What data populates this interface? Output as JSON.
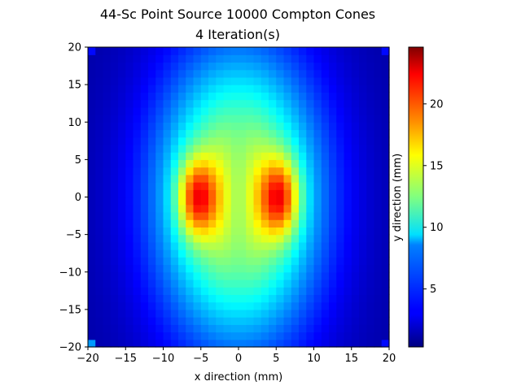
{
  "chart_data": {
    "type": "heatmap",
    "title": "44-Sc Point Source 10000 Compton Cones",
    "subtitle": "4 Iteration(s)",
    "xlabel": "x direction (mm)",
    "ylabel": "y direction (mm)",
    "xlim": [
      -20,
      20
    ],
    "ylim": [
      -20,
      20
    ],
    "x_ticks": [
      -20,
      -15,
      -10,
      -5,
      0,
      5,
      10,
      15,
      20
    ],
    "y_ticks": [
      -20,
      -15,
      -10,
      -5,
      0,
      5,
      10,
      15,
      20
    ],
    "grid": {
      "nx": 40,
      "ny": 40
    },
    "colormap": "jet",
    "colorbar": {
      "min": 0.3,
      "max": 24.6,
      "ticks": [
        5,
        10,
        15,
        20
      ]
    },
    "distribution": {
      "background": 1.2,
      "broad_component": {
        "x_center": 0,
        "y_center": 0,
        "x_sigma": 7.6,
        "y_sigma": 13.5,
        "amplitude": 14.5
      },
      "hotspots": [
        {
          "x_center": -5.5,
          "y_center": 0,
          "x_sigma": 1.8,
          "y_sigma": 3.6,
          "amplitude": 9.5
        },
        {
          "x_center": 5.5,
          "y_center": 0,
          "x_sigma": 1.8,
          "y_sigma": 3.6,
          "amplitude": 9.5
        }
      ],
      "central_dip": {
        "x_center": 0,
        "x_sigma": 1.3,
        "y_sigma": 6,
        "amplitude": -2.5
      },
      "corner_pixels": [
        {
          "x": -19.5,
          "y": 19.5,
          "value": 3.5
        },
        {
          "x": 19.5,
          "y": 19.5,
          "value": 3.5
        },
        {
          "x": -19.5,
          "y": -19.5,
          "value": 7.0
        },
        {
          "x": 19.5,
          "y": -19.5,
          "value": 3.5
        }
      ]
    }
  }
}
